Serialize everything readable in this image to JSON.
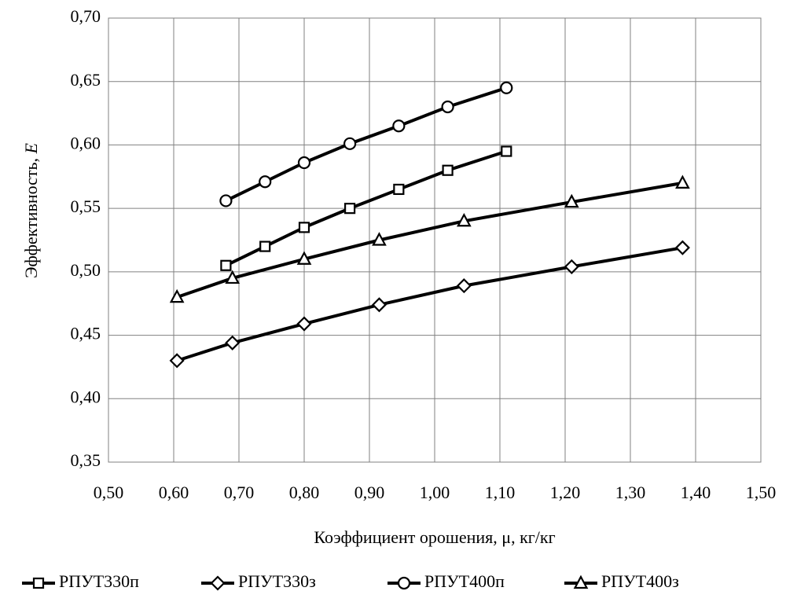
{
  "chart_data": {
    "type": "line",
    "title": "",
    "xlabel": "Коэффициент орошения, μ, кг/кг",
    "ylabel": "Эффективность, ",
    "ylabel_symbol": "E",
    "xlim": [
      0.5,
      1.5
    ],
    "ylim": [
      0.35,
      0.7
    ],
    "x_ticks": [
      "0,50",
      "0,60",
      "0,70",
      "0,80",
      "0,90",
      "1,00",
      "1,10",
      "1,20",
      "1,30",
      "1,40",
      "1,50"
    ],
    "y_ticks": [
      "0,35",
      "0,40",
      "0,45",
      "0,50",
      "0,55",
      "0,60",
      "0,65",
      "0,70"
    ],
    "grid": true,
    "legend_position": "bottom",
    "series": [
      {
        "name": "РПУТ330п",
        "marker": "square",
        "x": [
          0.68,
          0.74,
          0.8,
          0.87,
          0.945,
          1.02,
          1.11
        ],
        "y": [
          0.505,
          0.52,
          0.535,
          0.55,
          0.565,
          0.58,
          0.595
        ]
      },
      {
        "name": "РПУТ330з",
        "marker": "diamond",
        "x": [
          0.605,
          0.69,
          0.8,
          0.915,
          1.045,
          1.21,
          1.38
        ],
        "y": [
          0.43,
          0.444,
          0.459,
          0.474,
          0.489,
          0.504,
          0.519
        ]
      },
      {
        "name": "РПУТ400п",
        "marker": "circle",
        "x": [
          0.68,
          0.74,
          0.8,
          0.87,
          0.945,
          1.02,
          1.11
        ],
        "y": [
          0.556,
          0.571,
          0.586,
          0.601,
          0.615,
          0.63,
          0.645
        ]
      },
      {
        "name": "РПУТ400з",
        "marker": "triangle",
        "x": [
          0.605,
          0.69,
          0.8,
          0.915,
          1.045,
          1.21,
          1.38
        ],
        "y": [
          0.48,
          0.495,
          0.51,
          0.525,
          0.54,
          0.555,
          0.57
        ]
      }
    ]
  }
}
